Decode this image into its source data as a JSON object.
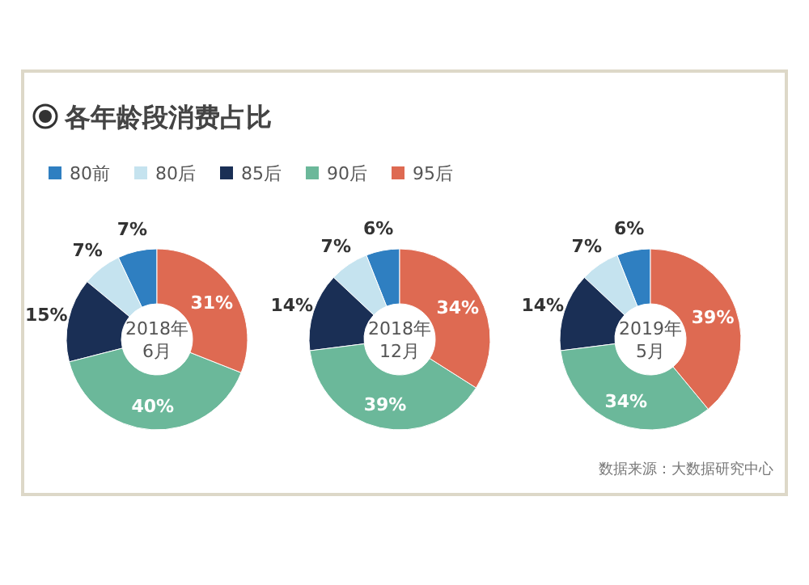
{
  "chart_data": {
    "type": "donut",
    "title": "各年龄段消费占比",
    "annotations": [
      "数据来源：大数据研究中心"
    ],
    "legend": "top",
    "categories": [
      "80前",
      "80后",
      "85后",
      "90后",
      "95后"
    ],
    "colors": [
      "#2f7fc1",
      "#c5e3ef",
      "#1a2f55",
      "#6bb89a",
      "#de6a52"
    ],
    "series": [
      {
        "name": "2018年\n6月",
        "values": [
          7,
          7,
          15,
          40,
          31
        ],
        "value_labels": [
          "7%",
          "7%",
          "15%",
          "40%",
          "31%"
        ]
      },
      {
        "name": "2018年\n12月",
        "values": [
          6,
          7,
          14,
          39,
          34
        ],
        "value_labels": [
          "6%",
          "7%",
          "14%",
          "39%",
          "34%"
        ]
      },
      {
        "name": "2019年\n5月",
        "values": [
          6,
          7,
          14,
          34,
          39
        ],
        "value_labels": [
          "6%",
          "7%",
          "14%",
          "34%",
          "39%"
        ]
      }
    ]
  }
}
